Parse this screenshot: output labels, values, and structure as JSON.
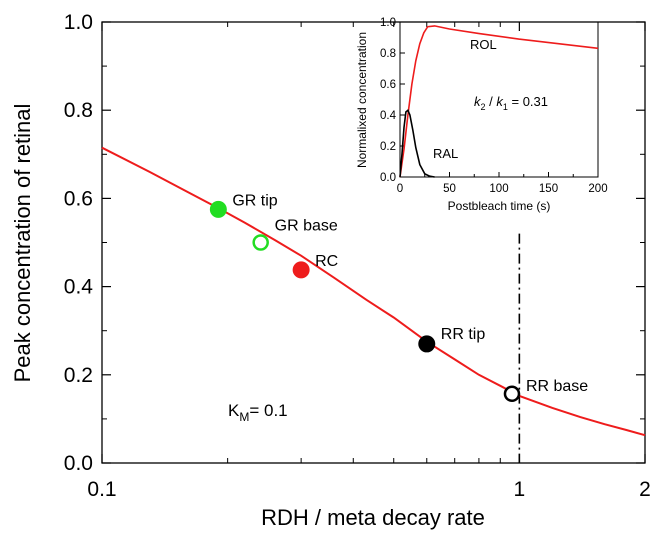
{
  "chart_data": [
    {
      "type": "line",
      "xscale": "log",
      "xlim": [
        0.1,
        2
      ],
      "ylim": [
        0.0,
        1.0
      ],
      "xlabel": "RDH / meta decay rate",
      "ylabel": "Peak concentration of retinal",
      "xticks": [
        {
          "value": 0.1,
          "label": "0.1"
        },
        {
          "value": 1,
          "label": "1"
        },
        {
          "value": 2,
          "label": "2"
        }
      ],
      "yticks": [
        {
          "value": 0.0,
          "label": "0.0"
        },
        {
          "value": 0.2,
          "label": "0.2"
        },
        {
          "value": 0.4,
          "label": "0.4"
        },
        {
          "value": 0.6,
          "label": "0.6"
        },
        {
          "value": 0.8,
          "label": "0.8"
        },
        {
          "value": 1.0,
          "label": "1.0"
        }
      ],
      "series": [
        {
          "color": "#ee1c1c",
          "x": [
            0.1,
            0.13,
            0.16,
            0.19,
            0.22,
            0.26,
            0.3,
            0.36,
            0.43,
            0.5,
            0.6,
            0.7,
            0.8,
            0.9,
            1.0,
            1.2,
            1.4,
            1.6,
            1.8,
            2.0
          ],
          "y": [
            0.715,
            0.66,
            0.615,
            0.578,
            0.545,
            0.505,
            0.47,
            0.42,
            0.37,
            0.33,
            0.275,
            0.235,
            0.2,
            0.175,
            0.152,
            0.125,
            0.104,
            0.088,
            0.075,
            0.063
          ]
        }
      ],
      "points": [
        {
          "label": "GR tip",
          "x": 0.19,
          "y": 0.575,
          "style": "filled",
          "color": "#22dd22"
        },
        {
          "label": "GR base",
          "x": 0.24,
          "y": 0.5,
          "style": "open",
          "color": "#22dd22"
        },
        {
          "label": "RC",
          "x": 0.3,
          "y": 0.438,
          "style": "filled",
          "color": "#ee1c1c"
        },
        {
          "label": "RR tip",
          "x": 0.6,
          "y": 0.27,
          "style": "filled",
          "color": "#000000"
        },
        {
          "label": "RR base",
          "x": 0.96,
          "y": 0.157,
          "style": "open",
          "color": "#000000"
        }
      ],
      "reference_line": {
        "x": 1,
        "style": "dash-dot",
        "color": "#000000"
      },
      "annotation": {
        "text_main": "K",
        "text_sub": "M",
        "text_rest": "= 0.1"
      }
    },
    {
      "type": "line",
      "xlim": [
        0,
        200
      ],
      "ylim": [
        0.0,
        1.0
      ],
      "xlabel": "Postbleach time (s)",
      "ylabel": "Normalixed concentration",
      "xticks": [
        {
          "value": 0,
          "label": "0"
        },
        {
          "value": 50,
          "label": "50"
        },
        {
          "value": 100,
          "label": "100"
        },
        {
          "value": 150,
          "label": "150"
        },
        {
          "value": 200,
          "label": "200"
        }
      ],
      "yticks": [
        {
          "value": 0.0,
          "label": "0.0"
        },
        {
          "value": 0.2,
          "label": "0.2"
        },
        {
          "value": 0.4,
          "label": "0.4"
        },
        {
          "value": 0.6,
          "label": "0.6"
        },
        {
          "value": 0.8,
          "label": "0.8"
        },
        {
          "value": 1.0,
          "label": "1.0"
        }
      ],
      "series": [
        {
          "name": "ROL",
          "color": "#ee1c1c",
          "x": [
            0,
            4,
            8,
            12,
            16,
            20,
            24,
            28,
            35,
            50,
            80,
            120,
            160,
            200
          ],
          "y": [
            0,
            0.18,
            0.4,
            0.6,
            0.75,
            0.86,
            0.93,
            0.97,
            0.975,
            0.955,
            0.925,
            0.89,
            0.86,
            0.83
          ]
        },
        {
          "name": "RAL",
          "color": "#000000",
          "x": [
            0,
            2,
            4,
            6,
            8,
            10,
            13,
            16,
            20,
            25,
            30,
            35
          ],
          "y": [
            0,
            0.15,
            0.32,
            0.42,
            0.43,
            0.4,
            0.3,
            0.19,
            0.08,
            0.02,
            0.005,
            0
          ]
        }
      ],
      "annotation": {
        "k2": "k",
        "k2_sub": "2",
        "sep": " / ",
        "k1": "k",
        "k1_sub": "1",
        "rest": " = 0.31"
      }
    }
  ]
}
